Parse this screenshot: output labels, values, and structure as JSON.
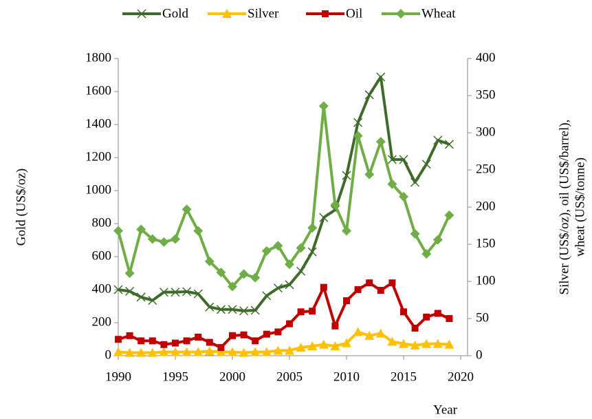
{
  "chart_data": {
    "type": "line",
    "x_label": "Year",
    "y_label": "Gold (US$/oz)",
    "y2_label": [
      "Silver (US$/oz), oil (US$/barrel),",
      "wheat (US$/tonne)"
    ],
    "x": [
      1990,
      1991,
      1992,
      1993,
      1994,
      1995,
      1996,
      1997,
      1998,
      1999,
      2000,
      2001,
      2002,
      2003,
      2004,
      2005,
      2006,
      2007,
      2008,
      2009,
      2010,
      2011,
      2012,
      2013,
      2014,
      2015,
      2016,
      2017,
      2018,
      2019
    ],
    "xlim": [
      1990,
      2020
    ],
    "xticks": [
      1990,
      1995,
      2000,
      2005,
      2010,
      2015,
      2020
    ],
    "ylim": [
      0,
      1800
    ],
    "yticks": [
      0,
      200,
      400,
      600,
      800,
      1000,
      1200,
      1400,
      1600,
      1800
    ],
    "y2lim": [
      0,
      400
    ],
    "y2ticks": [
      0,
      50,
      100,
      150,
      200,
      250,
      300,
      350,
      400
    ],
    "legend": "top",
    "series": [
      {
        "name": "Gold",
        "color": "#3f6b2a",
        "marker": "cross",
        "axis": "y",
        "values": [
          400,
          390,
          355,
          335,
          385,
          385,
          388,
          375,
          295,
          280,
          280,
          272,
          275,
          363,
          410,
          430,
          512,
          629,
          837,
          883,
          1092,
          1412,
          1580,
          1688,
          1188,
          1188,
          1050,
          1160,
          1305,
          1280
        ]
      },
      {
        "name": "Silver",
        "color": "#ffc000",
        "marker": "triangle",
        "axis": "y2",
        "values": [
          5,
          4,
          4,
          4,
          5,
          5,
          5,
          5,
          6,
          5,
          5,
          4,
          5,
          5,
          7,
          7,
          11,
          13,
          15,
          13,
          17,
          32,
          27,
          30,
          19,
          16,
          14,
          16,
          16,
          15
        ]
      },
      {
        "name": "Oil",
        "color": "#c00000",
        "marker": "square",
        "axis": "y2",
        "values": [
          22,
          27,
          20,
          20,
          15,
          17,
          20,
          25,
          18,
          11,
          27,
          28,
          20,
          29,
          32,
          43,
          59,
          60,
          92,
          40,
          74,
          89,
          98,
          88,
          98,
          59,
          37,
          52,
          57,
          50
        ]
      },
      {
        "name": "Wheat",
        "color": "#70ad47",
        "marker": "diamond",
        "axis": "y2",
        "values": [
          168,
          111,
          170,
          157,
          153,
          157,
          197,
          168,
          127,
          112,
          93,
          110,
          105,
          141,
          148,
          123,
          145,
          172,
          336,
          203,
          168,
          296,
          244,
          288,
          231,
          214,
          164,
          137,
          156,
          189
        ]
      }
    ]
  }
}
